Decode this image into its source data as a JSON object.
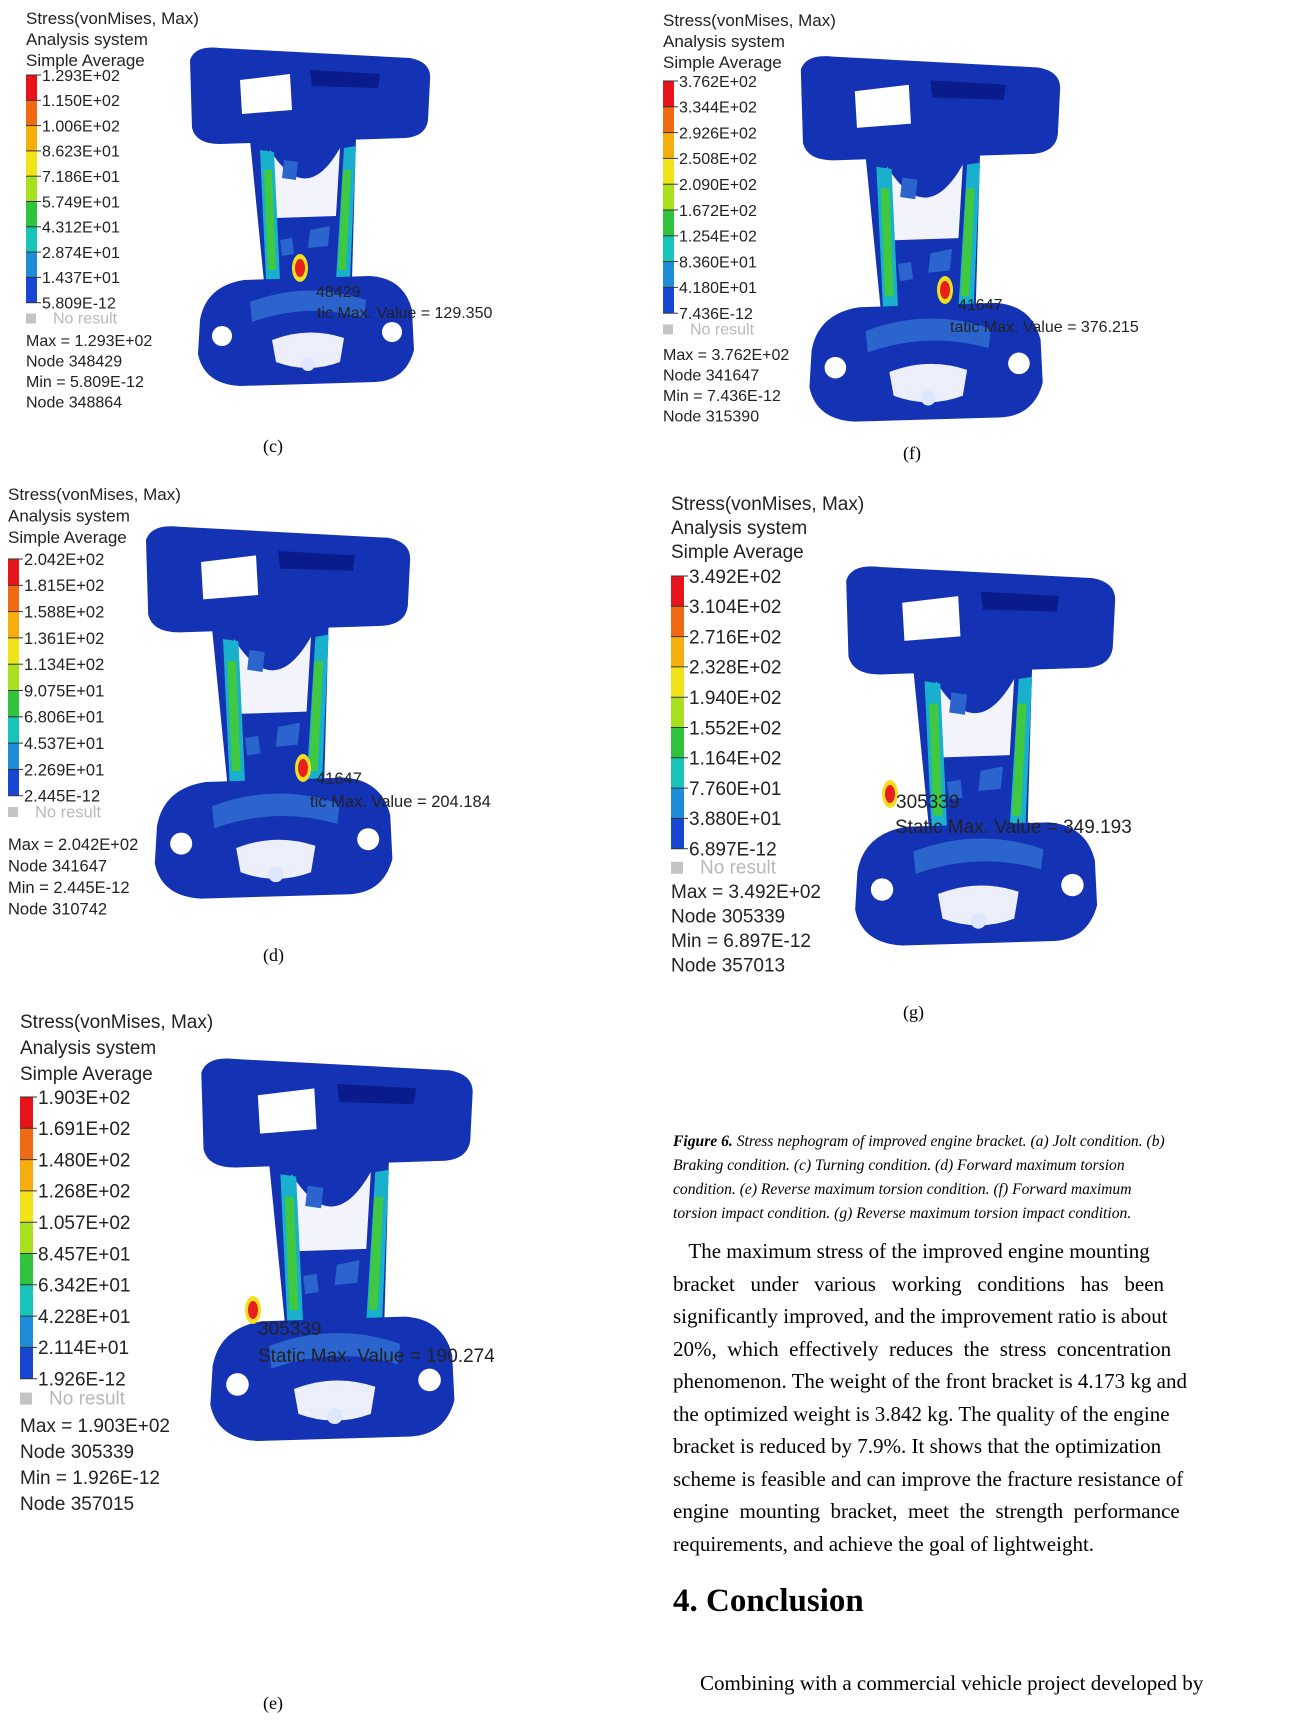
{
  "panels": [
    {
      "id": "c",
      "header": [
        "Stress(vonMises, Max)",
        "Analysis system",
        "Simple Average"
      ],
      "legend": [
        "1.293E+02",
        "1.150E+02",
        "1.006E+02",
        "8.623E+01",
        "7.186E+01",
        "5.749E+01",
        "4.312E+01",
        "2.874E+01",
        "1.437E+01",
        "5.809E-12"
      ],
      "no_result": "No result",
      "stats": [
        "Max = 1.293E+02",
        "Node 348429",
        "Min = 5.809E-12",
        "Node 348864"
      ],
      "node_label": "48429",
      "static_label": "tic Max. Value =  129.350",
      "caption": "(c)"
    },
    {
      "id": "f",
      "header": [
        "Stress(vonMises, Max)",
        "Analysis system",
        "Simple Average"
      ],
      "legend": [
        "3.762E+02",
        "3.344E+02",
        "2.926E+02",
        "2.508E+02",
        "2.090E+02",
        "1.672E+02",
        "1.254E+02",
        "8.360E+01",
        "4.180E+01",
        "7.436E-12"
      ],
      "no_result": "No result",
      "stats": [
        "Max = 3.762E+02",
        "Node 341647",
        "Min = 7.436E-12",
        "Node 315390"
      ],
      "node_label": "41647",
      "static_label": "tatic Max. Value =  376.215",
      "caption": "(f)"
    },
    {
      "id": "d",
      "header": [
        "Stress(vonMises, Max)",
        "Analysis system",
        "Simple Average"
      ],
      "legend": [
        "2.042E+02",
        "1.815E+02",
        "1.588E+02",
        "1.361E+02",
        "1.134E+02",
        "9.075E+01",
        "6.806E+01",
        "4.537E+01",
        "2.269E+01",
        "2.445E-12"
      ],
      "no_result": "No result",
      "stats": [
        "Max = 2.042E+02",
        "Node 341647",
        "Min = 2.445E-12",
        "Node 310742"
      ],
      "node_label": "41647",
      "static_label": "tic Max. Value =  204.184",
      "caption": "(d)"
    },
    {
      "id": "g",
      "header": [
        "Stress(vonMises, Max)",
        "Analysis system",
        "Simple Average"
      ],
      "legend": [
        "3.492E+02",
        "3.104E+02",
        "2.716E+02",
        "2.328E+02",
        "1.940E+02",
        "1.552E+02",
        "1.164E+02",
        "7.760E+01",
        "3.880E+01",
        "6.897E-12"
      ],
      "no_result": "No result",
      "stats": [
        "Max = 3.492E+02",
        "Node 305339",
        "Min = 6.897E-12",
        "Node 357013"
      ],
      "node_label": "305339",
      "static_label": "Static Max. Value =  349.193",
      "caption": "(g)"
    },
    {
      "id": "e",
      "header": [
        "Stress(vonMises, Max)",
        "Analysis system",
        "Simple Average"
      ],
      "legend": [
        "1.903E+02",
        "1.691E+02",
        "1.480E+02",
        "1.268E+02",
        "1.057E+02",
        "8.457E+01",
        "6.342E+01",
        "4.228E+01",
        "2.114E+01",
        "1.926E-12"
      ],
      "no_result": "No result",
      "stats": [
        "Max = 1.903E+02",
        "Node 305339",
        "Min = 1.926E-12",
        "Node 357015"
      ],
      "node_label": "305339",
      "static_label": "Static Max. Value =  190.274",
      "caption": "(e)"
    }
  ],
  "legend_colors": [
    "#e8141c",
    "#f06a14",
    "#f5ae0c",
    "#f0e418",
    "#a8e01e",
    "#30c43c",
    "#18c4b8",
    "#1e8cd8",
    "#1846d2",
    "#0a18b0"
  ],
  "mesh_colors": {
    "base": "#1432b4",
    "dark": "#0a1c8c",
    "patch": "#2a64cc",
    "mid": "#18b0cc",
    "green": "#40c840",
    "yellow": "#f0e020",
    "hot": "#e8201c"
  },
  "figure_caption": {
    "label": "Figure 6.",
    "lines": [
      " Stress nephogram of improved engine bracket. (a) Jolt condition. (b)",
      "Braking condition. (c) Turning condition. (d) Forward maximum torsion",
      "condition. (e) Reverse maximum torsion condition. (f) Forward maximum",
      "torsion impact condition. (g) Reverse maximum torsion impact condition."
    ]
  },
  "body_lines": [
    "   The maximum stress of the improved engine mounting",
    "bracket   under   various   working   conditions   has   been",
    "significantly improved, and the improvement ratio is about",
    "20%,  which  effectively  reduces  the  stress  concentration",
    "phenomenon. The weight of the front bracket is 4.173 kg and",
    "the optimized weight is 3.842 kg. The quality of the engine",
    "bracket is reduced by 7.9%. It shows that the optimization",
    "scheme is feasible and can improve the fracture resistance of",
    "engine  mounting  bracket,  meet  the  strength  performance",
    "requirements, and achieve the goal of lightweight."
  ],
  "section_heading": "4. Conclusion",
  "conclusion_start": "Combining with a commercial vehicle project developed by"
}
